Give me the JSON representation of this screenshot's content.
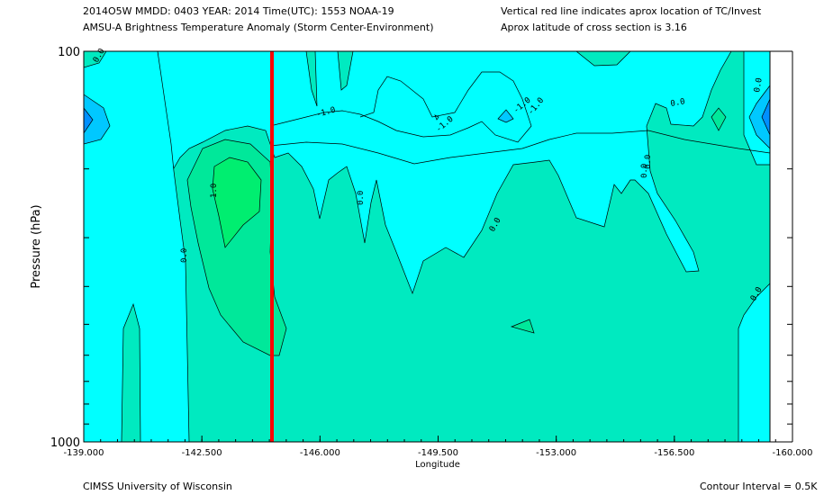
{
  "header": {
    "line1_left": "2014O5W  MMDD: 0403 YEAR: 2014 Time(UTC): 1553 NOAA-19",
    "line2_left": "AMSU-A Brightness Temperature Anomaly (Storm Center-Environment)",
    "line1_right": "Vertical red line indicates aprox location of TC/Invest",
    "line2_right": "Aprox latitude of cross section is 3.16"
  },
  "footer": {
    "left": "CIMSS University of Wisconsin",
    "right": "Contour Interval = 0.5K"
  },
  "chart_data": {
    "type": "heatmap",
    "title": "AMSU-A Brightness Temperature Anomaly (Storm Center-Environment)",
    "xlabel": "Longitude",
    "ylabel": "Pressure (hPa)",
    "xlim": [
      -139.0,
      -160.0
    ],
    "ylim": [
      1000,
      100
    ],
    "y_scale": "log",
    "x_ticks": [
      "-139.000",
      "-142.500",
      "-146.000",
      "-149.500",
      "-153.000",
      "-156.500",
      "-160.000"
    ],
    "y_ticks": [
      "100",
      "1000"
    ],
    "contour_interval": 0.5,
    "tc_longitude": -143.5,
    "contour_labels": [
      "0.0",
      "-1.0",
      "-1.0",
      "-1.0",
      "-1.0",
      "0.0",
      "0.0",
      "0.0",
      "0.0",
      "0.0",
      "0.0",
      "0.0",
      "0.0",
      "1.0"
    ],
    "colors": {
      "level_pos1": "#00ee70",
      "level_pos05": "#00e89a",
      "level_0": "#00eac0",
      "level_neg05": "#00ffff",
      "level_neg1": "#00c8ff",
      "level_neg15": "#0090ff",
      "tc_line": "#ff0000"
    }
  }
}
